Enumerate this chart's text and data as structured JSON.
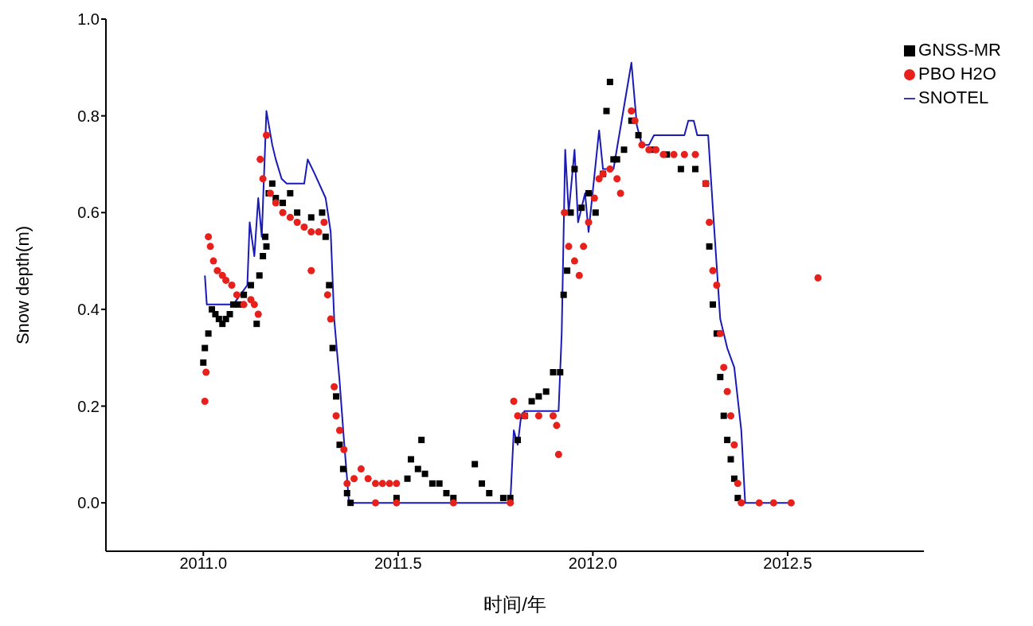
{
  "chart_data": {
    "type": "scatter",
    "xlabel": "时间/年",
    "ylabel": "Snow depth(m)",
    "xlim": [
      2010.75,
      2012.85
    ],
    "ylim": [
      -0.1,
      1.0
    ],
    "xticks": [
      {
        "value": 2011,
        "label": "2011.0"
      },
      {
        "value": 2011.5,
        "label": "2011.5"
      },
      {
        "value": 2012,
        "label": "2012.0"
      },
      {
        "value": 2012.5,
        "label": "2012.5"
      }
    ],
    "yticks": [
      {
        "value": 0,
        "label": "0.0"
      },
      {
        "value": 0.2,
        "label": "0.2"
      },
      {
        "value": 0.4,
        "label": "0.4"
      },
      {
        "value": 0.6,
        "label": "0.6"
      },
      {
        "value": 0.8,
        "label": "0.8"
      },
      {
        "value": 1,
        "label": "1.0"
      }
    ],
    "grid": false,
    "legend": "top right",
    "series": [
      {
        "name": "GNSS-MR",
        "marker": "square",
        "color": "#000000",
        "x": [
          2011.0,
          2011.004,
          2011.013,
          2011.022,
          2011.031,
          2011.04,
          2011.049,
          2011.058,
          2011.068,
          2011.077,
          2011.091,
          2011.104,
          2011.122,
          2011.137,
          2011.144,
          2011.153,
          2011.159,
          2011.162,
          2011.168,
          2011.177,
          2011.186,
          2011.204,
          2011.223,
          2011.241,
          2011.277,
          2011.305,
          2011.314,
          2011.323,
          2011.332,
          2011.341,
          2011.35,
          2011.359,
          2011.369,
          2011.378,
          2011.496,
          2011.524,
          2011.533,
          2011.551,
          2011.56,
          2011.569,
          2011.588,
          2011.606,
          2011.624,
          2011.642,
          2011.697,
          2011.715,
          2011.734,
          2011.77,
          2011.788,
          2011.807,
          2011.825,
          2011.843,
          2011.861,
          2011.88,
          2011.898,
          2011.916,
          2011.925,
          2011.934,
          2011.943,
          2011.953,
          2011.971,
          2011.989,
          2012.007,
          2012.026,
          2012.035,
          2012.044,
          2012.053,
          2012.062,
          2012.08,
          2012.099,
          2012.117,
          2012.153,
          2012.19,
          2012.226,
          2012.263,
          2012.29,
          2012.299,
          2012.308,
          2012.318,
          2012.327,
          2012.336,
          2012.345,
          2012.354,
          2012.363,
          2012.372
        ],
        "values": [
          0.29,
          0.32,
          0.35,
          0.4,
          0.39,
          0.38,
          0.37,
          0.38,
          0.39,
          0.41,
          0.41,
          0.43,
          0.45,
          0.37,
          0.47,
          0.51,
          0.55,
          0.53,
          0.64,
          0.66,
          0.63,
          0.62,
          0.64,
          0.6,
          0.59,
          0.6,
          0.55,
          0.45,
          0.32,
          0.22,
          0.12,
          0.07,
          0.02,
          0.0,
          0.01,
          0.05,
          0.09,
          0.07,
          0.13,
          0.06,
          0.04,
          0.04,
          0.02,
          0.01,
          0.08,
          0.04,
          0.02,
          0.01,
          0.01,
          0.13,
          0.18,
          0.21,
          0.22,
          0.23,
          0.27,
          0.27,
          0.43,
          0.48,
          0.6,
          0.69,
          0.61,
          0.64,
          0.6,
          0.68,
          0.81,
          0.87,
          0.71,
          0.71,
          0.73,
          0.79,
          0.76,
          0.73,
          0.72,
          0.69,
          0.69,
          0.66,
          0.53,
          0.41,
          0.35,
          0.26,
          0.18,
          0.13,
          0.09,
          0.05,
          0.01
        ]
      },
      {
        "name": "PBO H2O",
        "marker": "circle",
        "color": "#e8201c",
        "x": [
          2011.004,
          2011.007,
          2011.013,
          2011.018,
          2011.026,
          2011.036,
          2011.049,
          2011.058,
          2011.073,
          2011.086,
          2011.104,
          2011.122,
          2011.131,
          2011.141,
          2011.146,
          2011.153,
          2011.162,
          2011.172,
          2011.186,
          2011.204,
          2011.223,
          2011.241,
          2011.259,
          2011.277,
          2011.296,
          2011.31,
          2011.277,
          2011.319,
          2011.327,
          2011.336,
          2011.341,
          2011.35,
          2011.361,
          2011.369,
          2011.387,
          2011.405,
          2011.423,
          2011.442,
          2011.46,
          2011.478,
          2011.496,
          2011.442,
          2011.496,
          2011.642,
          2011.788,
          2011.797,
          2011.807,
          2011.825,
          2011.861,
          2011.898,
          2011.907,
          2011.912,
          2011.927,
          2011.938,
          2011.953,
          2011.965,
          2011.976,
          2011.989,
          2012.004,
          2012.016,
          2012.026,
          2012.044,
          2012.062,
          2012.071,
          2012.099,
          2012.108,
          2012.126,
          2012.144,
          2012.162,
          2012.181,
          2012.208,
          2012.235,
          2012.263,
          2012.29,
          2012.299,
          2012.308,
          2012.318,
          2012.327,
          2012.336,
          2012.345,
          2012.354,
          2012.363,
          2012.372,
          2012.381,
          2012.427,
          2012.464,
          2012.509,
          2012.578
        ],
        "values": [
          0.21,
          0.27,
          0.55,
          0.53,
          0.5,
          0.48,
          0.47,
          0.46,
          0.45,
          0.43,
          0.41,
          0.42,
          0.41,
          0.39,
          0.71,
          0.67,
          0.76,
          0.64,
          0.62,
          0.6,
          0.59,
          0.58,
          0.57,
          0.56,
          0.56,
          0.58,
          0.48,
          0.43,
          0.38,
          0.24,
          0.18,
          0.15,
          0.11,
          0.04,
          0.05,
          0.07,
          0.05,
          0.04,
          0.04,
          0.04,
          0.04,
          0.0,
          0.0,
          0.0,
          0.0,
          0.21,
          0.18,
          0.18,
          0.18,
          0.18,
          0.16,
          0.1,
          0.6,
          0.53,
          0.5,
          0.47,
          0.53,
          0.58,
          0.63,
          0.67,
          0.68,
          0.69,
          0.67,
          0.64,
          0.81,
          0.79,
          0.74,
          0.73,
          0.73,
          0.72,
          0.72,
          0.72,
          0.72,
          0.66,
          0.58,
          0.48,
          0.45,
          0.35,
          0.28,
          0.23,
          0.18,
          0.12,
          0.04,
          0.0,
          0.0,
          0.0,
          0.0,
          0.465
        ]
      },
      {
        "name": "SNOTEL",
        "type": "line",
        "marker": "none",
        "line_style": "solid",
        "color": "#1a1ab8",
        "x": [
          2011.004,
          2011.009,
          2011.04,
          2011.077,
          2011.095,
          2011.113,
          2011.119,
          2011.131,
          2011.141,
          2011.15,
          2011.162,
          2011.177,
          2011.186,
          2011.201,
          2011.214,
          2011.259,
          2011.268,
          2011.286,
          2011.314,
          2011.327,
          2011.336,
          2011.35,
          2011.361,
          2011.374,
          2011.788,
          2011.797,
          2011.807,
          2011.816,
          2011.825,
          2011.912,
          2011.92,
          2011.929,
          2011.938,
          2011.953,
          2011.962,
          2011.98,
          2011.989,
          2012.016,
          2012.026,
          2012.053,
          2012.099,
          2012.113,
          2012.126,
          2012.144,
          2012.157,
          2012.181,
          2012.235,
          2012.245,
          2012.259,
          2012.268,
          2012.296,
          2012.308,
          2012.327,
          2012.345,
          2012.363,
          2012.381,
          2012.391,
          2012.509
        ],
        "values": [
          0.47,
          0.41,
          0.41,
          0.41,
          0.43,
          0.45,
          0.58,
          0.51,
          0.63,
          0.55,
          0.81,
          0.74,
          0.71,
          0.67,
          0.66,
          0.66,
          0.71,
          0.68,
          0.63,
          0.56,
          0.38,
          0.25,
          0.13,
          0.0,
          0.0,
          0.15,
          0.12,
          0.18,
          0.19,
          0.19,
          0.35,
          0.73,
          0.6,
          0.73,
          0.58,
          0.64,
          0.56,
          0.77,
          0.69,
          0.69,
          0.91,
          0.78,
          0.74,
          0.74,
          0.76,
          0.76,
          0.76,
          0.79,
          0.79,
          0.76,
          0.76,
          0.61,
          0.38,
          0.32,
          0.28,
          0.15,
          0.0,
          0.0
        ]
      }
    ]
  }
}
